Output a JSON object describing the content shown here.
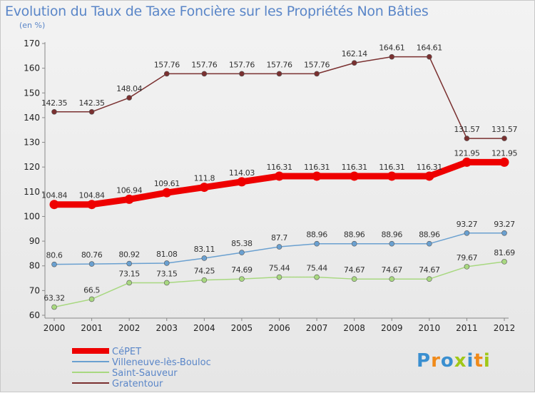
{
  "title": "Evolution du Taux de Taxe Foncière sur les Propriétés Non Bâties",
  "subtitle": "(en %)",
  "logo_text": "Proxiti",
  "chart_data": {
    "type": "line",
    "title": "Evolution du Taux de Taxe Foncière sur les Propriétés Non Bâties",
    "ylabel": "(en %)",
    "ylim": [
      60,
      170
    ],
    "yticks": [
      60,
      70,
      80,
      90,
      100,
      110,
      120,
      130,
      140,
      150,
      160,
      170
    ],
    "grid": false,
    "legend_position": "bottom-left",
    "categories": [
      "2000",
      "2001",
      "2002",
      "2003",
      "2004",
      "2005",
      "2006",
      "2007",
      "2008",
      "2009",
      "2010",
      "2011",
      "2012"
    ],
    "series": [
      {
        "name": "CéPET",
        "color": "#ee0000",
        "values": [
          104.84,
          104.84,
          106.94,
          109.61,
          111.8,
          114.03,
          116.31,
          116.31,
          116.31,
          116.31,
          116.31,
          121.95,
          121.95
        ],
        "labels": [
          "104.84",
          "104.84",
          "106.94",
          "109.61",
          "111.8",
          "114.03",
          "116.31",
          "116.31",
          "116.31",
          "116.31",
          "116.31",
          "121.95",
          "121.95"
        ]
      },
      {
        "name": "Villeneuve-lès-Bouloc",
        "color": "#6aa0d0",
        "values": [
          80.6,
          80.76,
          80.92,
          81.08,
          83.11,
          85.38,
          87.7,
          88.96,
          88.96,
          88.96,
          88.96,
          93.27,
          93.27
        ],
        "labels": [
          "80.6",
          "80.76",
          "80.92",
          "81.08",
          "83.11",
          "85.38",
          "87.7",
          "88.96",
          "88.96",
          "88.96",
          "88.96",
          "93.27",
          "93.27"
        ]
      },
      {
        "name": "Saint-Sauveur",
        "color": "#a8d880",
        "values": [
          63.32,
          66.5,
          73.15,
          73.15,
          74.25,
          74.69,
          75.44,
          75.44,
          74.67,
          74.67,
          74.67,
          79.67,
          81.69
        ],
        "labels": [
          "63.32",
          "66.5",
          "73.15",
          "73.15",
          "74.25",
          "74.69",
          "75.44",
          "75.44",
          "74.67",
          "74.67",
          "74.67",
          "79.67",
          "81.69"
        ]
      },
      {
        "name": "Gratentour",
        "color": "#7a3030",
        "values": [
          142.35,
          142.35,
          148.04,
          157.76,
          157.76,
          157.76,
          157.76,
          157.76,
          162.14,
          164.61,
          164.61,
          131.57,
          131.57
        ],
        "labels": [
          "142.35",
          "142.35",
          "148.04",
          "157.76",
          "157.76",
          "157.76",
          "157.76",
          "157.76",
          "162.14",
          "164.61",
          "164.61",
          "131.57",
          "131.57"
        ]
      }
    ]
  }
}
